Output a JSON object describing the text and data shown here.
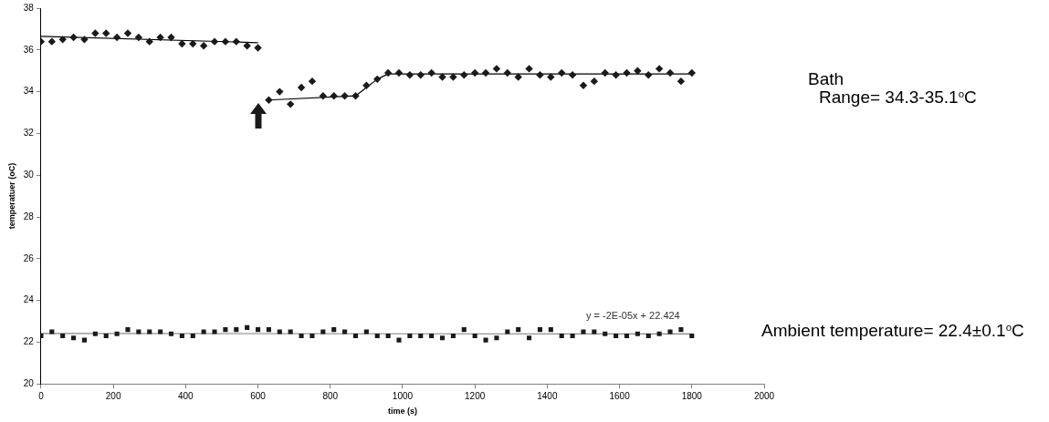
{
  "chart_data": {
    "type": "scatter",
    "xlabel": "time (s)",
    "ylabel": "temperatuer (oC)",
    "xlim": [
      0,
      2000
    ],
    "xticks": [
      0,
      200,
      400,
      600,
      800,
      1000,
      1200,
      1400,
      1600,
      1800,
      2000
    ],
    "ylim": [
      20,
      38
    ],
    "yticks": [
      20,
      22,
      24,
      26,
      28,
      30,
      32,
      34,
      36,
      38
    ],
    "grid": false,
    "legend": false,
    "series": [
      {
        "marker": "diamond",
        "color": "#1a1a1a",
        "x": [
          0,
          30,
          60,
          90,
          120,
          150,
          180,
          210,
          240,
          270,
          300,
          330,
          360,
          390,
          420,
          450,
          480,
          510,
          540,
          570,
          600
        ],
        "values": [
          36.4,
          36.4,
          36.5,
          36.6,
          36.5,
          36.8,
          36.8,
          36.6,
          36.8,
          36.6,
          36.4,
          36.6,
          36.6,
          36.3,
          36.3,
          36.2,
          36.4,
          36.4,
          36.4,
          36.2,
          36.1
        ]
      },
      {
        "marker": "diamond",
        "color": "#1a1a1a",
        "x": [
          630,
          660,
          690,
          720,
          750,
          780,
          810,
          840,
          870,
          900,
          930,
          960,
          990,
          1020,
          1050,
          1080,
          1110,
          1140,
          1170,
          1200,
          1230,
          1260,
          1290,
          1320,
          1350,
          1380,
          1410,
          1440,
          1470,
          1500,
          1530,
          1560,
          1590,
          1620,
          1650,
          1680,
          1710,
          1740,
          1770,
          1800
        ],
        "values": [
          33.6,
          34.0,
          33.4,
          34.2,
          34.5,
          33.8,
          33.8,
          33.8,
          33.8,
          34.3,
          34.6,
          34.9,
          34.9,
          34.8,
          34.8,
          34.9,
          34.7,
          34.7,
          34.8,
          34.9,
          34.9,
          35.1,
          34.9,
          34.7,
          35.1,
          34.8,
          34.7,
          34.9,
          34.8,
          34.3,
          34.5,
          34.9,
          34.8,
          34.9,
          35.0,
          34.8,
          35.1,
          34.9,
          34.5,
          34.9
        ]
      },
      {
        "marker": "square",
        "color": "#1a1a1a",
        "x": [
          0,
          30,
          60,
          90,
          120,
          150,
          180,
          210,
          240,
          270,
          300,
          330,
          360,
          390,
          420,
          450,
          480,
          510,
          540,
          570,
          600,
          630,
          660,
          690,
          720,
          750,
          780,
          810,
          840,
          870,
          900,
          930,
          960,
          990,
          1020,
          1050,
          1080,
          1110,
          1140,
          1170,
          1200,
          1230,
          1260,
          1290,
          1320,
          1350,
          1380,
          1410,
          1440,
          1470,
          1500,
          1530,
          1560,
          1590,
          1620,
          1650,
          1680,
          1710,
          1740,
          1770,
          1800
        ],
        "values": [
          22.3,
          22.5,
          22.3,
          22.2,
          22.1,
          22.4,
          22.3,
          22.4,
          22.6,
          22.5,
          22.5,
          22.5,
          22.4,
          22.3,
          22.3,
          22.5,
          22.5,
          22.6,
          22.6,
          22.7,
          22.6,
          22.6,
          22.5,
          22.5,
          22.3,
          22.3,
          22.5,
          22.6,
          22.5,
          22.3,
          22.5,
          22.3,
          22.3,
          22.1,
          22.3,
          22.3,
          22.3,
          22.2,
          22.3,
          22.6,
          22.3,
          22.1,
          22.2,
          22.5,
          22.6,
          22.2,
          22.6,
          22.6,
          22.3,
          22.3,
          22.5,
          22.5,
          22.4,
          22.3,
          22.3,
          22.4,
          22.3,
          22.4,
          22.5,
          22.6,
          22.3
        ]
      },
      {
        "type": "line",
        "marker": "none",
        "color": "#000000",
        "x": [
          0,
          600
        ],
        "values": [
          36.65,
          36.35
        ]
      },
      {
        "type": "line",
        "marker": "none",
        "color": "#000000",
        "x": [
          630,
          870,
          900,
          930,
          960,
          1800
        ],
        "values": [
          33.6,
          33.8,
          34.2,
          34.6,
          34.85,
          34.85
        ]
      },
      {
        "type": "line",
        "marker": "none",
        "color": "#808080",
        "x": [
          0,
          1800
        ],
        "values": [
          22.42,
          22.39
        ]
      }
    ],
    "annotations": [
      "y = -2E-05x + 22.424",
      "Ambient temperature= 22.4±0.1$^{o}$C",
      "Bath",
      "Range= 34.3-35.1$^{o}$C"
    ]
  }
}
